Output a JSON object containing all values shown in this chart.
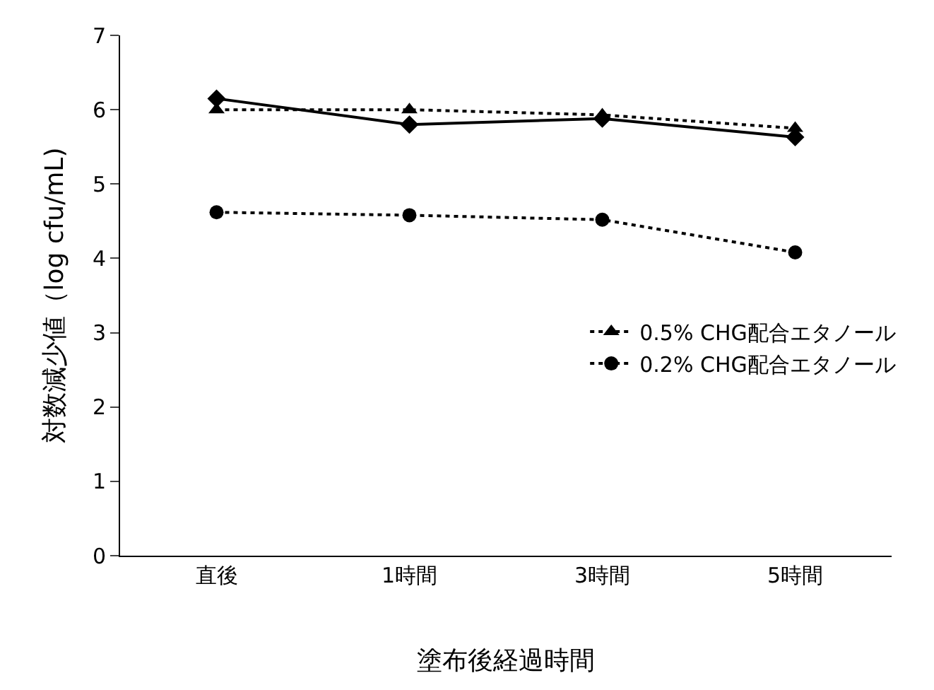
{
  "chart_data": {
    "type": "line",
    "xlabel": "塗布後経過時間",
    "ylabel": "対数減少値（log cfu/mL)",
    "categories": [
      "直後",
      "1時間",
      "3時間",
      "5時間"
    ],
    "series": [
      {
        "color": "#000000",
        "marker": "diamond",
        "line_style": "solid",
        "values": [
          6.15,
          5.8,
          5.88,
          5.63
        ]
      },
      {
        "name": "0.5% CHG配合エタノール",
        "color": "#000000",
        "marker": "triangle",
        "line_style": "dotted",
        "values": [
          6.0,
          6.0,
          5.93,
          5.75
        ]
      },
      {
        "name": "0.2% CHG配合エタノール",
        "color": "#000000",
        "marker": "circle",
        "line_style": "dotted",
        "values": [
          4.62,
          4.58,
          4.52,
          4.08
        ]
      }
    ],
    "ylim": [
      0,
      7
    ],
    "yticks": [
      0,
      1,
      2,
      3,
      4,
      5,
      6,
      7
    ],
    "legend": "right"
  }
}
